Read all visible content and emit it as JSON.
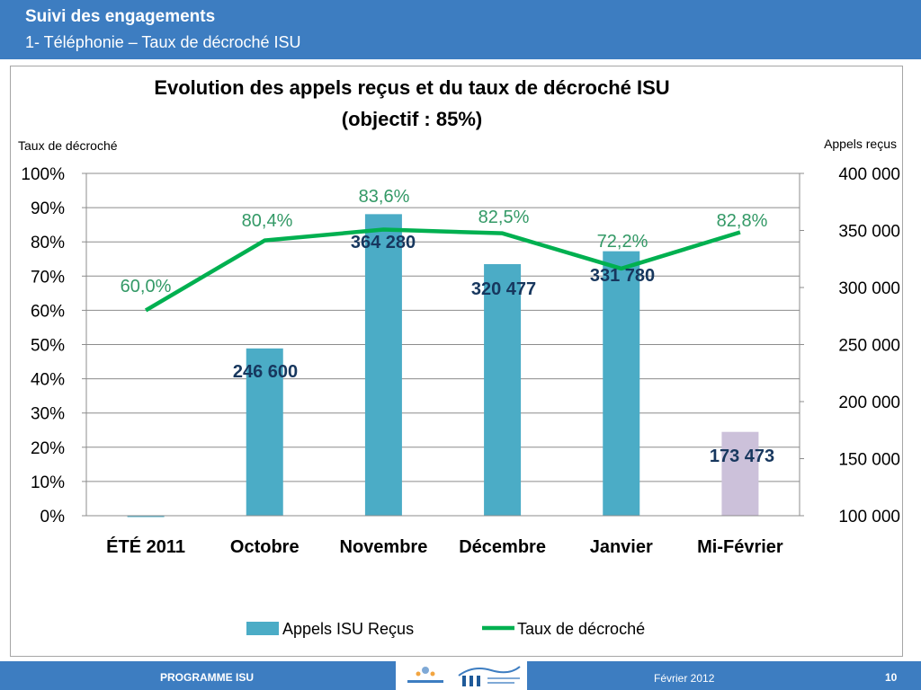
{
  "header": {
    "title": "Suivi des engagements",
    "subtitle": "1- Téléphonie – Taux de décroché ISU"
  },
  "footer": {
    "program": "PROGRAMME ISU",
    "date": "Février 2012",
    "page": "10",
    "logos": [
      "acoss-logo",
      "rsi-logo"
    ]
  },
  "colors": {
    "header_bg": "#3d7dc1",
    "bar": "#4bacc6",
    "bar_highlight": "#ccc1da",
    "line": "#00b050",
    "line_label": "#339966",
    "bar_label": "#17375e"
  },
  "chart_data": {
    "type": "bar",
    "title": "Evolution des appels reçus et du taux de décroché ISU",
    "subtitle": "(objectif : 85%)",
    "categories": [
      "ÉTÉ 2011",
      "Octobre",
      "Novembre",
      "Décembre",
      "Janvier",
      "Mi-Février"
    ],
    "ylabel_left": "Taux de décroché",
    "ylabel_right": "Appels reçus",
    "left_axis": {
      "range": [
        0,
        100
      ],
      "ticks": [
        "0%",
        "10%",
        "20%",
        "30%",
        "40%",
        "50%",
        "60%",
        "70%",
        "80%",
        "90%",
        "100%"
      ]
    },
    "right_axis": {
      "range": [
        100000,
        400000
      ],
      "ticks": [
        "100 000",
        "150 000",
        "200 000",
        "250 000",
        "300 000",
        "350 000",
        "400 000"
      ]
    },
    "grid": true,
    "legend_position": "bottom",
    "series": [
      {
        "name": "Appels ISU Reçus",
        "type": "bar",
        "axis": "right",
        "values": [
          99500,
          246600,
          364280,
          320477,
          331780,
          173473
        ],
        "labels": [
          "",
          "246 600",
          "364 280",
          "320 477",
          "331 780",
          "173 473"
        ]
      },
      {
        "name": "Taux de décroché",
        "type": "line",
        "axis": "left",
        "values": [
          60.0,
          80.4,
          83.6,
          82.5,
          72.2,
          82.8
        ],
        "labels": [
          "60,0%",
          "80,4%",
          "83,6%",
          "82,5%",
          "72,2%",
          "82,8%"
        ]
      }
    ]
  }
}
